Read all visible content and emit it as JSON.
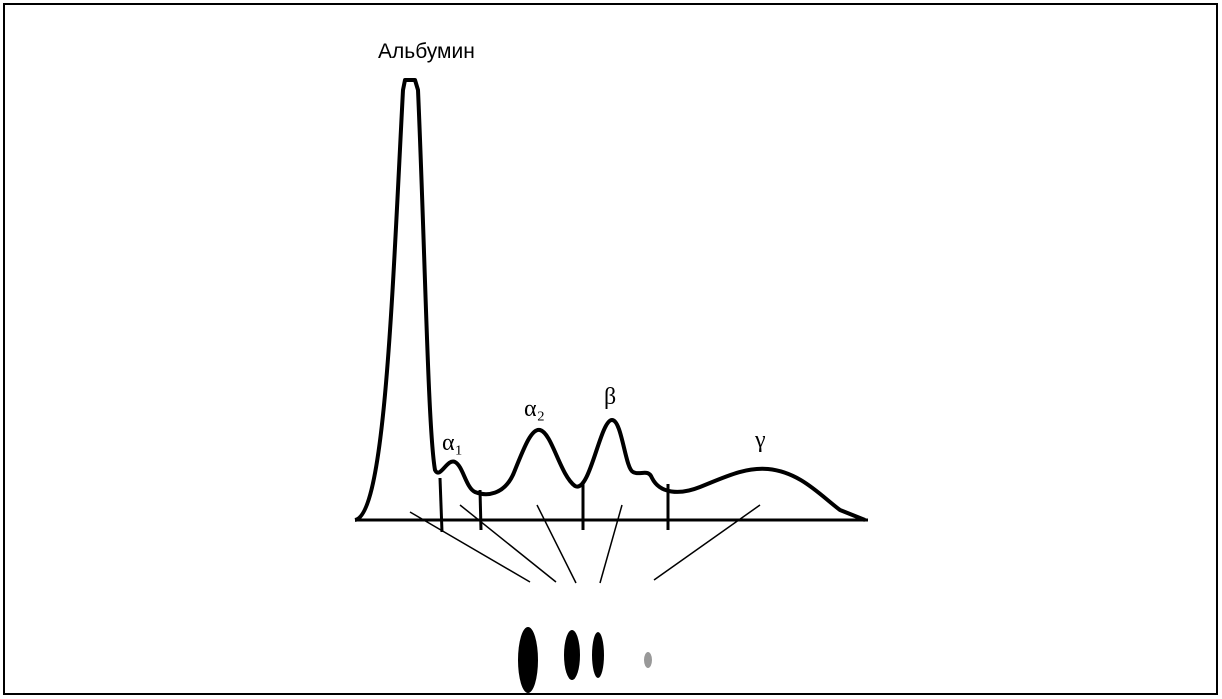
{
  "title": "Альбумин",
  "fractions": [
    "α₁",
    "α₂",
    "β",
    "γ"
  ]
}
